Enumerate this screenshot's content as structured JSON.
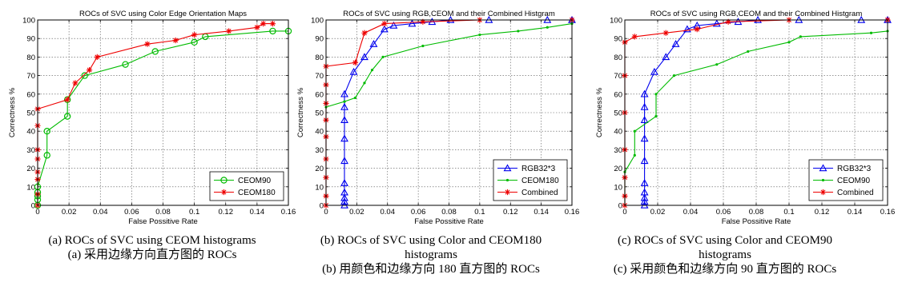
{
  "chart_data": [
    {
      "type": "line",
      "title": "ROCs of SVC using Color Edge Orientation Maps",
      "xlabel": "False Possitive Rate",
      "ylabel": "Correctness %",
      "xlim": [
        0,
        0.16
      ],
      "ylim": [
        0,
        100
      ],
      "xticks": [
        "0",
        "0.02",
        "0.04",
        "0.06",
        "0.08",
        "0.1",
        "0.12",
        "0.14",
        "0.16"
      ],
      "yticks": [
        "0",
        "10",
        "20",
        "30",
        "40",
        "50",
        "60",
        "70",
        "80",
        "90",
        "100"
      ],
      "grid": true,
      "legend": "bottom-right",
      "caption_en": "(a) ROCs of SVC using CEOM histograms",
      "caption_zh": "(a) 采用边缘方向直方图的 ROCs",
      "series": [
        {
          "name": "CEOM90",
          "color": "#00bb00",
          "marker": "circle",
          "x": [
            0,
            0,
            0,
            0,
            0,
            0.006,
            0.006,
            0.019,
            0.019,
            0.03,
            0.056,
            0.075,
            0.1,
            0.107,
            0.15,
            0.16
          ],
          "y": [
            0,
            3,
            5,
            7,
            10,
            27,
            40,
            48,
            57,
            70,
            76,
            83,
            88,
            91,
            94,
            94
          ]
        },
        {
          "name": "CEOM180",
          "color": "#ee0000",
          "marker": "star",
          "x": [
            0,
            0,
            0,
            0,
            0,
            0,
            0,
            0,
            0.019,
            0.024,
            0.033,
            0.038,
            0.07,
            0.088,
            0.1,
            0.122,
            0.14,
            0.144,
            0.15
          ],
          "y": [
            0,
            6,
            14,
            18,
            25,
            30,
            43,
            52,
            57,
            66,
            73,
            80,
            87,
            89,
            92,
            94,
            96,
            98,
            98
          ]
        }
      ]
    },
    {
      "type": "line",
      "title": "ROCs of SVC using RGB,CEOM and their Combined Histgram",
      "xlabel": "False Possitive Rate",
      "ylabel": "Correctness %",
      "xlim": [
        0,
        0.16
      ],
      "ylim": [
        0,
        100
      ],
      "xticks": [
        "0",
        "0.02",
        "0.04",
        "0.06",
        "0.08",
        "0.1",
        "0.12",
        "0.14",
        "0.16"
      ],
      "yticks": [
        "0",
        "10",
        "20",
        "30",
        "40",
        "50",
        "60",
        "70",
        "80",
        "90",
        "100"
      ],
      "grid": true,
      "legend": "bottom-right",
      "caption_en": "(b) ROCs of SVC using Color and CEOM180 histograms",
      "caption_zh": "(b) 用颜色和边缘方向 180 直方图的 ROCs",
      "series": [
        {
          "name": "RGB32*3",
          "color": "#0000ee",
          "marker": "triangle",
          "x": [
            0.012,
            0.012,
            0.012,
            0.012,
            0.012,
            0.012,
            0.012,
            0.012,
            0.012,
            0.012,
            0.018,
            0.025,
            0.031,
            0.038,
            0.044,
            0.056,
            0.069,
            0.081,
            0.106,
            0.144,
            0.16
          ],
          "y": [
            0,
            2,
            4,
            7,
            12,
            24,
            36,
            46,
            53,
            60,
            72,
            80,
            87,
            95,
            97,
            98,
            99,
            100,
            100,
            100,
            100
          ]
        },
        {
          "name": "CEOM180",
          "color": "#00bb00",
          "marker": "dot",
          "x": [
            0,
            0.012,
            0.019,
            0.025,
            0.03,
            0.037,
            0.063,
            0.1,
            0.125,
            0.144,
            0.16
          ],
          "y": [
            53,
            56,
            58,
            66,
            73,
            80,
            86,
            92,
            94,
            96,
            98
          ]
        },
        {
          "name": "Combined",
          "color": "#ee0000",
          "marker": "star",
          "x": [
            0,
            0,
            0,
            0,
            0,
            0,
            0,
            0,
            0,
            0.019,
            0.025,
            0.038,
            0.063,
            0.1,
            0.16
          ],
          "y": [
            0,
            5,
            15,
            25,
            37,
            46,
            55,
            65,
            75,
            77,
            93,
            98,
            99,
            100,
            100
          ]
        }
      ]
    },
    {
      "type": "line",
      "title": "ROCs of SVC using RGB,CEOM and their Combined Histgram",
      "xlabel": "False Possitive Rate",
      "ylabel": "Correctness %",
      "xlim": [
        0,
        0.16
      ],
      "ylim": [
        0,
        100
      ],
      "xticks": [
        "0",
        "0.02",
        "0.04",
        "0.06",
        "0.08",
        "0.1",
        "0.12",
        "0.14",
        "0.16"
      ],
      "yticks": [
        "0",
        "10",
        "20",
        "30",
        "40",
        "50",
        "60",
        "70",
        "80",
        "90",
        "100"
      ],
      "grid": true,
      "legend": "bottom-right",
      "caption_en": "(c) ROCs of SVC using Color and CEOM90 histograms",
      "caption_zh": "(c) 采用颜色和边缘方向 90 直方图的 ROCs",
      "series": [
        {
          "name": "RGB32*3",
          "color": "#0000ee",
          "marker": "triangle",
          "x": [
            0.012,
            0.012,
            0.012,
            0.012,
            0.012,
            0.012,
            0.012,
            0.012,
            0.012,
            0.012,
            0.018,
            0.025,
            0.031,
            0.038,
            0.044,
            0.056,
            0.069,
            0.081,
            0.106,
            0.144,
            0.16
          ],
          "y": [
            0,
            2,
            4,
            7,
            12,
            24,
            36,
            46,
            53,
            60,
            72,
            80,
            87,
            95,
            97,
            98,
            99,
            100,
            100,
            100,
            100
          ]
        },
        {
          "name": "CEOM90",
          "color": "#00bb00",
          "marker": "dot",
          "x": [
            0,
            0,
            0.006,
            0.006,
            0.019,
            0.019,
            0.03,
            0.056,
            0.075,
            0.1,
            0.107,
            0.15,
            0.16
          ],
          "y": [
            0,
            18,
            27,
            40,
            48,
            60,
            70,
            76,
            83,
            88,
            91,
            93,
            94
          ]
        },
        {
          "name": "Combined",
          "color": "#ee0000",
          "marker": "star",
          "x": [
            0,
            0,
            0,
            0,
            0,
            0,
            0,
            0.006,
            0.025,
            0.044,
            0.063,
            0.1,
            0.16
          ],
          "y": [
            0,
            5,
            15,
            30,
            50,
            70,
            88,
            91,
            93,
            95,
            99,
            100,
            100
          ]
        }
      ]
    }
  ]
}
